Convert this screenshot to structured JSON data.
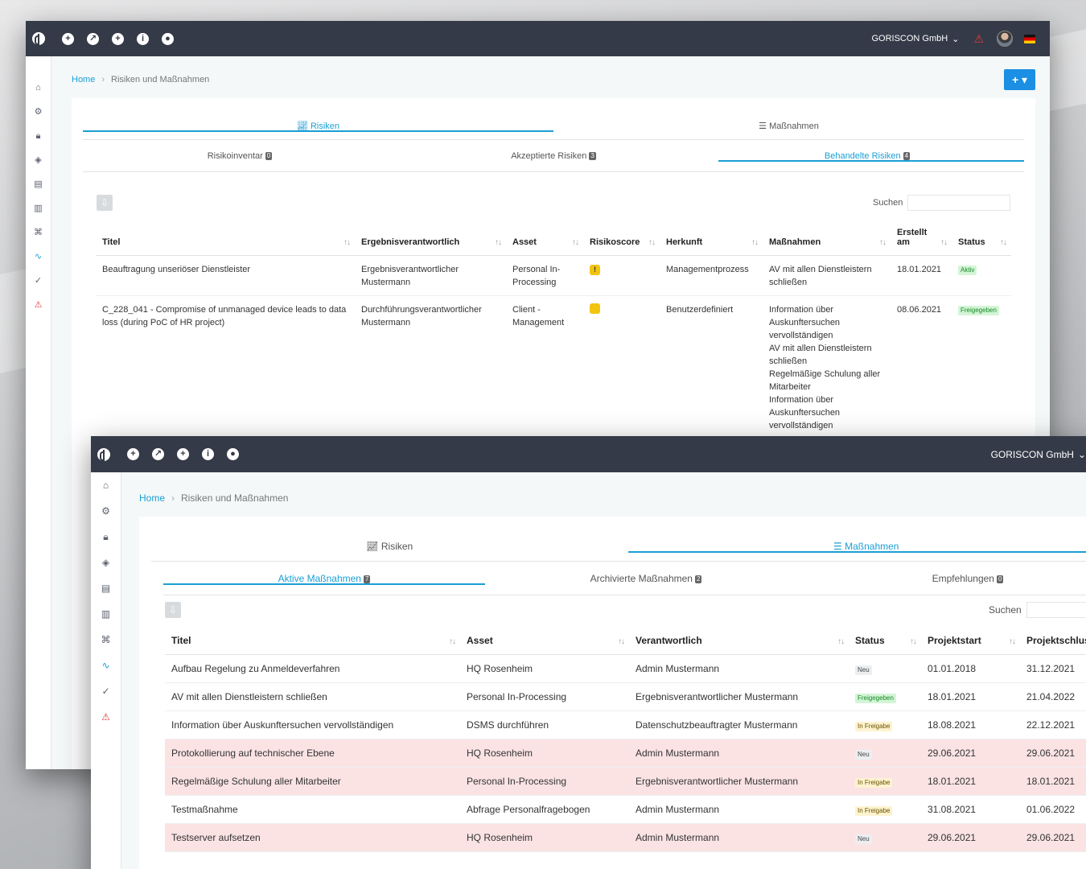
{
  "app": {
    "company": "GORISCON GmbH",
    "accent": "#1a9fd4",
    "topbar_color": "#343a48",
    "topbar_icons": [
      "add-circle-icon",
      "compass-icon",
      "plus-circle-icon",
      "info-icon",
      "user-circle-icon"
    ]
  },
  "breadcrumb": {
    "home": "Home",
    "current": "Risiken und Maßnahmen"
  },
  "tabs": {
    "risiken": "Risiken",
    "massnahmen": "Maßnahmen"
  },
  "search_label": "Suchen",
  "window1": {
    "subtabs": [
      {
        "label": "Risikoinventar",
        "count": "0"
      },
      {
        "label": "Akzeptierte Risiken",
        "count": "3"
      },
      {
        "label": "Behandelte Risiken",
        "count": "4"
      }
    ],
    "columns": [
      "Titel",
      "Ergebnisverantwortlich",
      "Asset",
      "Risikoscore",
      "Herkunft",
      "Maßnahmen",
      "Erstellt am",
      "Status"
    ],
    "rows": [
      {
        "titel": "Beauftragung unseriöser Dienstleister",
        "verantwortlich": "Ergebnisverantwortlicher Mustermann",
        "asset": "Personal In-Processing",
        "score": "!",
        "herkunft": "Managementprozess",
        "massnahmen": [
          "AV mit allen Dienstleistern schließen"
        ],
        "erstellt": "18.01.2021",
        "status": "Aktiv"
      },
      {
        "titel": "C_228_041 - Compromise of unmanaged device leads to data loss (during PoC of HR project)",
        "verantwortlich": "Durchführungsverantwortlicher Mustermann",
        "asset": "Client - Management",
        "score": "",
        "herkunft": "Benutzerdefiniert",
        "massnahmen": [
          "Information über Auskunftersuchen vervollständigen",
          "AV mit allen Dienstleistern schließen",
          "Regelmäßige Schulung aller Mitarbeiter",
          "Information über Auskunftersuchen vervollständigen"
        ],
        "erstellt": "08.06.2021",
        "status": "Freigegeben"
      }
    ]
  },
  "window2": {
    "subtabs": [
      {
        "label": "Aktive Maßnahmen",
        "count": "7"
      },
      {
        "label": "Archivierte Maßnahmen",
        "count": "2"
      },
      {
        "label": "Empfehlungen",
        "count": "0"
      }
    ],
    "columns": [
      "Titel",
      "Asset",
      "Verantwortlich",
      "Status",
      "Projektstart",
      "Projektschlus"
    ],
    "rows": [
      {
        "titel": "Aufbau Regelung zu Anmeldeverfahren",
        "asset": "HQ Rosenheim",
        "verantwortlich": "Admin Mustermann",
        "status": "Neu",
        "start": "01.01.2018",
        "ende": "31.12.2021",
        "highlight": false
      },
      {
        "titel": "AV mit allen Dienstleistern schließen",
        "asset": "Personal In-Processing",
        "verantwortlich": "Ergebnisverantwortlicher Mustermann",
        "status": "Freigegeben",
        "start": "18.01.2021",
        "ende": "21.04.2022",
        "highlight": false
      },
      {
        "titel": "Information über Auskunftersuchen vervollständigen",
        "asset": "DSMS durchführen",
        "verantwortlich": "Datenschutzbeauftragter Mustermann",
        "status": "In Freigabe",
        "start": "18.08.2021",
        "ende": "22.12.2021",
        "highlight": false
      },
      {
        "titel": "Protokollierung auf technischer Ebene",
        "asset": "HQ Rosenheim",
        "verantwortlich": "Admin Mustermann",
        "status": "Neu",
        "start": "29.06.2021",
        "ende": "29.06.2021",
        "highlight": true
      },
      {
        "titel": "Regelmäßige Schulung aller Mitarbeiter",
        "asset": "Personal In-Processing",
        "verantwortlich": "Ergebnisverantwortlicher Mustermann",
        "status": "In Freigabe",
        "start": "18.01.2021",
        "ende": "18.01.2021",
        "highlight": true
      },
      {
        "titel": "Testmaßnahme",
        "asset": "Abfrage Personalfragebogen",
        "verantwortlich": "Admin Mustermann",
        "status": "In Freigabe",
        "start": "31.08.2021",
        "ende": "01.06.2022",
        "highlight": false
      },
      {
        "titel": "Testserver aufsetzen",
        "asset": "HQ Rosenheim",
        "verantwortlich": "Admin Mustermann",
        "status": "Neu",
        "start": "29.06.2021",
        "ende": "29.06.2021",
        "highlight": true
      }
    ]
  }
}
